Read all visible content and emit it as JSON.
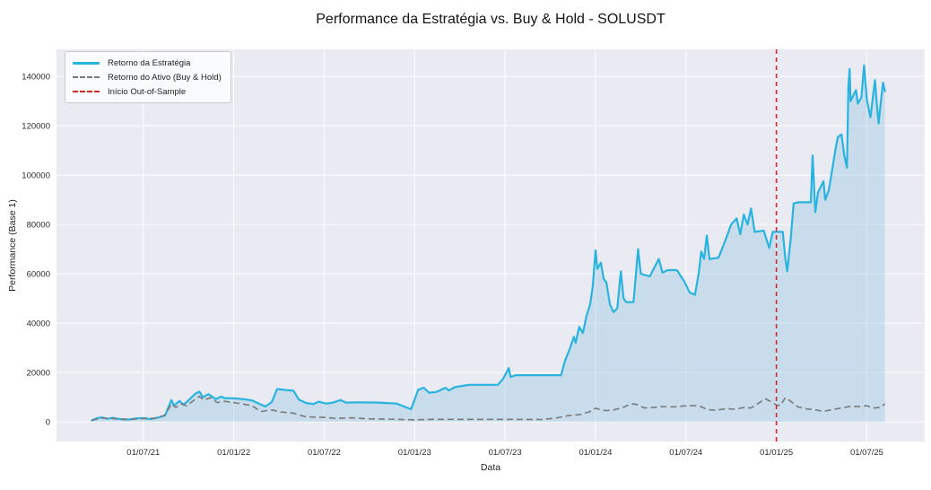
{
  "figure": {
    "title": "Performance da Estratégia vs. Buy & Hold - SOLUSDT",
    "xlabel": "Data",
    "ylabel": "Performance (Base 1)"
  },
  "legend": {
    "items": [
      {
        "label": "Retorno da Estratégia",
        "style": "solid",
        "color": "#29b4e0"
      },
      {
        "label": "Retorno do Ativo (Buy & Hold)",
        "style": "dashed",
        "color": "#7a7a7a"
      },
      {
        "label": "Início Out-of-Sample",
        "style": "dashed",
        "color": "#d62728"
      }
    ]
  },
  "chart_data": {
    "type": "line",
    "title": "Performance da Estratégia vs. Buy & Hold - SOLUSDT",
    "xlabel": "Data",
    "ylabel": "Performance (Base 1)",
    "x_unit": "decimal_year",
    "grid": true,
    "legend_position": "upper-left",
    "xlim": [
      2021.02,
      2025.82
    ],
    "ylim": [
      -8000,
      151000
    ],
    "x_ticks": [
      {
        "v": 2021.5,
        "label": "01/07/21"
      },
      {
        "v": 2022.0,
        "label": "01/01/22"
      },
      {
        "v": 2022.5,
        "label": "01/07/22"
      },
      {
        "v": 2023.0,
        "label": "01/01/23"
      },
      {
        "v": 2023.5,
        "label": "01/07/23"
      },
      {
        "v": 2024.0,
        "label": "01/01/24"
      },
      {
        "v": 2024.5,
        "label": "01/07/24"
      },
      {
        "v": 2025.0,
        "label": "01/01/25"
      },
      {
        "v": 2025.5,
        "label": "01/07/25"
      }
    ],
    "y_ticks": [
      {
        "v": 0,
        "label": "0"
      },
      {
        "v": 20000,
        "label": "20000"
      },
      {
        "v": 40000,
        "label": "40000"
      },
      {
        "v": 60000,
        "label": "60000"
      },
      {
        "v": 80000,
        "label": "80000"
      },
      {
        "v": 100000,
        "label": "100000"
      },
      {
        "v": 120000,
        "label": "120000"
      },
      {
        "v": 140000,
        "label": "140000"
      }
    ],
    "vline": {
      "x": 2025.0,
      "label": "Início Out-of-Sample",
      "color": "#d62728",
      "style": "dashed"
    },
    "colors": {
      "fig_bg": "#ffffff",
      "plot_bg": "#e9eaf2",
      "grid": "#ffffff",
      "fill": "rgba(130,190,225,0.32)"
    },
    "series": [
      {
        "name": "Retorno da Estratégia",
        "color": "#29b4e0",
        "style": "solid",
        "fill_to_zero": true,
        "points": [
          [
            2021.215,
            600
          ],
          [
            2021.24,
            1400
          ],
          [
            2021.27,
            1800
          ],
          [
            2021.3,
            1200
          ],
          [
            2021.33,
            1600
          ],
          [
            2021.37,
            1100
          ],
          [
            2021.42,
            900
          ],
          [
            2021.46,
            1400
          ],
          [
            2021.5,
            1500
          ],
          [
            2021.54,
            1100
          ],
          [
            2021.58,
            1700
          ],
          [
            2021.62,
            2600
          ],
          [
            2021.655,
            8800
          ],
          [
            2021.67,
            6500
          ],
          [
            2021.7,
            8500
          ],
          [
            2021.72,
            7000
          ],
          [
            2021.74,
            8000
          ],
          [
            2021.76,
            9500
          ],
          [
            2021.79,
            11500
          ],
          [
            2021.81,
            12200
          ],
          [
            2021.83,
            10000
          ],
          [
            2021.86,
            11200
          ],
          [
            2021.9,
            9200
          ],
          [
            2021.93,
            10200
          ],
          [
            2021.95,
            9600
          ],
          [
            2022.0,
            9500
          ],
          [
            2022.05,
            9200
          ],
          [
            2022.1,
            8700
          ],
          [
            2022.15,
            7000
          ],
          [
            2022.175,
            6200
          ],
          [
            2022.21,
            8000
          ],
          [
            2022.24,
            13300
          ],
          [
            2022.3,
            12800
          ],
          [
            2022.33,
            12600
          ],
          [
            2022.36,
            9000
          ],
          [
            2022.4,
            7600
          ],
          [
            2022.44,
            7200
          ],
          [
            2022.47,
            8200
          ],
          [
            2022.51,
            7400
          ],
          [
            2022.55,
            7800
          ],
          [
            2022.59,
            8800
          ],
          [
            2022.62,
            7800
          ],
          [
            2022.7,
            7900
          ],
          [
            2022.8,
            7800
          ],
          [
            2022.9,
            7400
          ],
          [
            2022.98,
            5100
          ],
          [
            2023.02,
            13000
          ],
          [
            2023.05,
            13800
          ],
          [
            2023.08,
            11800
          ],
          [
            2023.12,
            12100
          ],
          [
            2023.17,
            13800
          ],
          [
            2023.19,
            12700
          ],
          [
            2023.22,
            14000
          ],
          [
            2023.3,
            15000
          ],
          [
            2023.46,
            15000
          ],
          [
            2023.49,
            17500
          ],
          [
            2023.52,
            21800
          ],
          [
            2023.53,
            18200
          ],
          [
            2023.56,
            18900
          ],
          [
            2023.81,
            18900
          ],
          [
            2023.83,
            24500
          ],
          [
            2023.86,
            30000
          ],
          [
            2023.88,
            34500
          ],
          [
            2023.89,
            32000
          ],
          [
            2023.91,
            38500
          ],
          [
            2023.93,
            36000
          ],
          [
            2023.95,
            43000
          ],
          [
            2023.97,
            47500
          ],
          [
            2023.985,
            55000
          ],
          [
            2024.0,
            69500
          ],
          [
            2024.01,
            62000
          ],
          [
            2024.03,
            64500
          ],
          [
            2024.045,
            58000
          ],
          [
            2024.06,
            56500
          ],
          [
            2024.08,
            47500
          ],
          [
            2024.1,
            44500
          ],
          [
            2024.12,
            46000
          ],
          [
            2024.14,
            61000
          ],
          [
            2024.155,
            50000
          ],
          [
            2024.17,
            48500
          ],
          [
            2024.21,
            48500
          ],
          [
            2024.225,
            61000
          ],
          [
            2024.235,
            70000
          ],
          [
            2024.25,
            60000
          ],
          [
            2024.3,
            59000
          ],
          [
            2024.35,
            66000
          ],
          [
            2024.37,
            60500
          ],
          [
            2024.4,
            61500
          ],
          [
            2024.45,
            61500
          ],
          [
            2024.49,
            57000
          ],
          [
            2024.52,
            52500
          ],
          [
            2024.55,
            51500
          ],
          [
            2024.57,
            60000
          ],
          [
            2024.585,
            69000
          ],
          [
            2024.6,
            66000
          ],
          [
            2024.615,
            75500
          ],
          [
            2024.63,
            66000
          ],
          [
            2024.68,
            66500
          ],
          [
            2024.72,
            74000
          ],
          [
            2024.75,
            80000
          ],
          [
            2024.78,
            82500
          ],
          [
            2024.8,
            76000
          ],
          [
            2024.82,
            84000
          ],
          [
            2024.84,
            80000
          ],
          [
            2024.86,
            86500
          ],
          [
            2024.88,
            77000
          ],
          [
            2024.93,
            77500
          ],
          [
            2024.96,
            70500
          ],
          [
            2024.98,
            77000
          ],
          [
            2025.035,
            77000
          ],
          [
            2025.05,
            66000
          ],
          [
            2025.06,
            61000
          ],
          [
            2025.08,
            75000
          ],
          [
            2025.095,
            88500
          ],
          [
            2025.12,
            89000
          ],
          [
            2025.19,
            89000
          ],
          [
            2025.2,
            108000
          ],
          [
            2025.215,
            85000
          ],
          [
            2025.23,
            93000
          ],
          [
            2025.26,
            97500
          ],
          [
            2025.27,
            90000
          ],
          [
            2025.29,
            94000
          ],
          [
            2025.31,
            103000
          ],
          [
            2025.33,
            112000
          ],
          [
            2025.34,
            115500
          ],
          [
            2025.36,
            116500
          ],
          [
            2025.375,
            108000
          ],
          [
            2025.39,
            103000
          ],
          [
            2025.398,
            136000
          ],
          [
            2025.405,
            143000
          ],
          [
            2025.41,
            130000
          ],
          [
            2025.44,
            134500
          ],
          [
            2025.45,
            129000
          ],
          [
            2025.47,
            131500
          ],
          [
            2025.485,
            144500
          ],
          [
            2025.5,
            130500
          ],
          [
            2025.52,
            123500
          ],
          [
            2025.53,
            129500
          ],
          [
            2025.545,
            138500
          ],
          [
            2025.555,
            129000
          ],
          [
            2025.565,
            121000
          ],
          [
            2025.58,
            131500
          ],
          [
            2025.59,
            137500
          ],
          [
            2025.6,
            134000
          ]
        ]
      },
      {
        "name": "Retorno do Ativo (Buy & Hold)",
        "color": "#7a7a7a",
        "style": "dashed",
        "fill_to_zero": false,
        "points": [
          [
            2021.215,
            600
          ],
          [
            2021.27,
            1500
          ],
          [
            2021.33,
            1300
          ],
          [
            2021.42,
            900
          ],
          [
            2021.5,
            1300
          ],
          [
            2021.58,
            1500
          ],
          [
            2021.62,
            2800
          ],
          [
            2021.655,
            7200
          ],
          [
            2021.68,
            5800
          ],
          [
            2021.71,
            7200
          ],
          [
            2021.74,
            6500
          ],
          [
            2021.77,
            8200
          ],
          [
            2021.81,
            10300
          ],
          [
            2021.835,
            8800
          ],
          [
            2021.87,
            9800
          ],
          [
            2021.91,
            7800
          ],
          [
            2021.95,
            8300
          ],
          [
            2022.0,
            7800
          ],
          [
            2022.05,
            7200
          ],
          [
            2022.1,
            6500
          ],
          [
            2022.15,
            4200
          ],
          [
            2022.21,
            4800
          ],
          [
            2022.26,
            4000
          ],
          [
            2022.33,
            3500
          ],
          [
            2022.4,
            2000
          ],
          [
            2022.5,
            1800
          ],
          [
            2022.56,
            1400
          ],
          [
            2022.65,
            1600
          ],
          [
            2022.75,
            1200
          ],
          [
            2022.9,
            1000
          ],
          [
            2023.0,
            800
          ],
          [
            2023.1,
            1000
          ],
          [
            2023.3,
            1000
          ],
          [
            2023.5,
            1000
          ],
          [
            2023.7,
            900
          ],
          [
            2023.78,
            1500
          ],
          [
            2023.85,
            2500
          ],
          [
            2023.92,
            3000
          ],
          [
            2023.97,
            4200
          ],
          [
            2024.0,
            5500
          ],
          [
            2024.03,
            4800
          ],
          [
            2024.06,
            4500
          ],
          [
            2024.1,
            4800
          ],
          [
            2024.15,
            5800
          ],
          [
            2024.2,
            7300
          ],
          [
            2024.23,
            7000
          ],
          [
            2024.27,
            5600
          ],
          [
            2024.32,
            5800
          ],
          [
            2024.37,
            6200
          ],
          [
            2024.42,
            6000
          ],
          [
            2024.47,
            6300
          ],
          [
            2024.52,
            6600
          ],
          [
            2024.57,
            6500
          ],
          [
            2024.62,
            4900
          ],
          [
            2024.67,
            4700
          ],
          [
            2024.72,
            5300
          ],
          [
            2024.77,
            5100
          ],
          [
            2024.82,
            5800
          ],
          [
            2024.86,
            5600
          ],
          [
            2024.9,
            7500
          ],
          [
            2024.94,
            9300
          ],
          [
            2024.97,
            8200
          ],
          [
            2025.0,
            6800
          ],
          [
            2025.02,
            6600
          ],
          [
            2025.05,
            9800
          ],
          [
            2025.07,
            8800
          ],
          [
            2025.12,
            6000
          ],
          [
            2025.17,
            5200
          ],
          [
            2025.22,
            4800
          ],
          [
            2025.26,
            4200
          ],
          [
            2025.31,
            5000
          ],
          [
            2025.36,
            5600
          ],
          [
            2025.41,
            6300
          ],
          [
            2025.46,
            6200
          ],
          [
            2025.5,
            6500
          ],
          [
            2025.54,
            5600
          ],
          [
            2025.57,
            5800
          ],
          [
            2025.6,
            7200
          ]
        ]
      }
    ]
  }
}
